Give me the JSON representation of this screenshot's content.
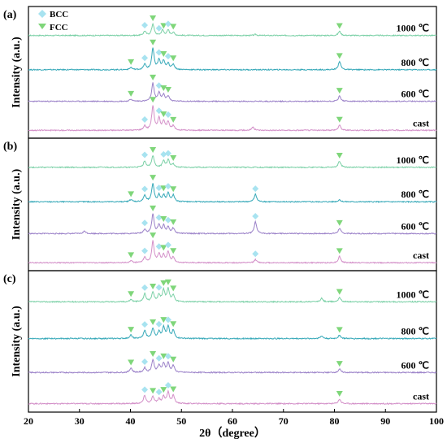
{
  "chart_data": {
    "type": "line",
    "xlabel": "2θ（degree）",
    "ylabel": "Intensity  (a.u.)",
    "xlim": [
      20,
      100
    ],
    "xticks": [
      20,
      30,
      40,
      50,
      60,
      70,
      80,
      90,
      100
    ],
    "legend": {
      "position": "top-left",
      "items": [
        {
          "label": "BCC",
          "marker": "diamond",
          "color": "#a8e3f0"
        },
        {
          "label": "FCC",
          "marker": "triangle-down",
          "color": "#7fd67a"
        }
      ]
    },
    "panels": [
      {
        "label": "(a)",
        "series": [
          {
            "name": "1000 ℃",
            "color": "#7ad0a6",
            "peaks": [
              [
                42.8,
                0.2
              ],
              [
                44.4,
                0.55
              ],
              [
                46.3,
                0.25
              ],
              [
                47.4,
                0.25
              ],
              [
                48.4,
                0.14
              ],
              [
                64.5,
                0.05
              ],
              [
                81.0,
                0.2
              ]
            ],
            "markers": [
              {
                "x": 42.8,
                "phase": "BCC"
              },
              {
                "x": 44.4,
                "phase": "FCC"
              },
              {
                "x": 45.6,
                "phase": "BCC"
              },
              {
                "x": 46.5,
                "phase": "FCC"
              },
              {
                "x": 47.4,
                "phase": "BCC"
              },
              {
                "x": 48.4,
                "phase": "FCC"
              },
              {
                "x": 81.0,
                "phase": "FCC"
              }
            ]
          },
          {
            "name": "800 ℃",
            "color": "#35a8b8",
            "peaks": [
              [
                40.1,
                0.1
              ],
              [
                42.8,
                0.25
              ],
              [
                44.4,
                1.0
              ],
              [
                45.6,
                0.45
              ],
              [
                46.5,
                0.4
              ],
              [
                47.4,
                0.3
              ],
              [
                48.4,
                0.25
              ],
              [
                81.0,
                0.4
              ]
            ],
            "markers": [
              {
                "x": 40.1,
                "phase": "FCC"
              },
              {
                "x": 42.8,
                "phase": "BCC"
              },
              {
                "x": 44.4,
                "phase": "FCC"
              },
              {
                "x": 45.6,
                "phase": "BCC"
              },
              {
                "x": 46.5,
                "phase": "FCC"
              },
              {
                "x": 47.4,
                "phase": "BCC"
              },
              {
                "x": 48.4,
                "phase": "FCC"
              },
              {
                "x": 81.0,
                "phase": "FCC"
              }
            ]
          },
          {
            "name": "600 ℃",
            "color": "#9a80c8",
            "peaks": [
              [
                40.1,
                0.1
              ],
              [
                44.4,
                0.85
              ],
              [
                45.6,
                0.4
              ],
              [
                46.5,
                0.3
              ],
              [
                47.4,
                0.25
              ],
              [
                81.0,
                0.25
              ]
            ],
            "markers": [
              {
                "x": 40.1,
                "phase": "FCC"
              },
              {
                "x": 44.4,
                "phase": "FCC"
              },
              {
                "x": 45.6,
                "phase": "BCC"
              },
              {
                "x": 46.5,
                "phase": "FCC"
              },
              {
                "x": 47.4,
                "phase": "FCC"
              },
              {
                "x": 81.0,
                "phase": "FCC"
              }
            ]
          },
          {
            "name": "cast",
            "color": "#d38fc8",
            "peaks": [
              [
                42.8,
                0.2
              ],
              [
                44.4,
                1.15
              ],
              [
                45.6,
                0.55
              ],
              [
                46.5,
                0.4
              ],
              [
                47.4,
                0.4
              ],
              [
                48.4,
                0.2
              ],
              [
                64.0,
                0.15
              ],
              [
                81.0,
                0.25
              ]
            ],
            "markers": [
              {
                "x": 42.8,
                "phase": "BCC"
              },
              {
                "x": 44.4,
                "phase": "FCC"
              },
              {
                "x": 45.6,
                "phase": "BCC"
              },
              {
                "x": 46.5,
                "phase": "FCC"
              },
              {
                "x": 47.4,
                "phase": "BCC"
              },
              {
                "x": 48.4,
                "phase": "FCC"
              },
              {
                "x": 81.0,
                "phase": "FCC"
              }
            ]
          }
        ]
      },
      {
        "label": "(b)",
        "series": [
          {
            "name": "1000 ℃",
            "color": "#7ad0a6",
            "peaks": [
              [
                42.8,
                0.3
              ],
              [
                44.4,
                0.55
              ],
              [
                46.5,
                0.3
              ],
              [
                47.4,
                0.35
              ],
              [
                48.4,
                0.15
              ],
              [
                81.0,
                0.3
              ]
            ],
            "markers": [
              {
                "x": 42.8,
                "phase": "BCC"
              },
              {
                "x": 44.4,
                "phase": "FCC"
              },
              {
                "x": 46.5,
                "phase": "BCC"
              },
              {
                "x": 47.4,
                "phase": "BCC"
              },
              {
                "x": 48.4,
                "phase": "FCC"
              },
              {
                "x": 81.0,
                "phase": "FCC"
              }
            ]
          },
          {
            "name": "800 ℃",
            "color": "#35a8b8",
            "peaks": [
              [
                40.1,
                0.1
              ],
              [
                42.8,
                0.3
              ],
              [
                44.4,
                0.85
              ],
              [
                45.6,
                0.3
              ],
              [
                46.5,
                0.3
              ],
              [
                47.4,
                0.4
              ],
              [
                48.4,
                0.3
              ],
              [
                64.5,
                0.35
              ],
              [
                81.0,
                0.1
              ]
            ],
            "markers": [
              {
                "x": 40.1,
                "phase": "FCC"
              },
              {
                "x": 42.8,
                "phase": "BCC"
              },
              {
                "x": 44.4,
                "phase": "FCC"
              },
              {
                "x": 45.6,
                "phase": "BCC"
              },
              {
                "x": 46.5,
                "phase": "FCC"
              },
              {
                "x": 47.4,
                "phase": "BCC"
              },
              {
                "x": 48.4,
                "phase": "FCC"
              },
              {
                "x": 64.5,
                "phase": "BCC"
              }
            ]
          },
          {
            "name": "600 ℃",
            "color": "#9a80c8",
            "peaks": [
              [
                31.0,
                0.12
              ],
              [
                42.8,
                0.2
              ],
              [
                44.4,
                0.9
              ],
              [
                45.6,
                0.4
              ],
              [
                46.5,
                0.35
              ],
              [
                47.4,
                0.3
              ],
              [
                48.4,
                0.25
              ],
              [
                64.5,
                0.55
              ],
              [
                81.0,
                0.25
              ]
            ],
            "markers": [
              {
                "x": 42.8,
                "phase": "BCC"
              },
              {
                "x": 44.4,
                "phase": "FCC"
              },
              {
                "x": 45.6,
                "phase": "BCC"
              },
              {
                "x": 46.5,
                "phase": "FCC"
              },
              {
                "x": 47.4,
                "phase": "BCC"
              },
              {
                "x": 48.4,
                "phase": "FCC"
              },
              {
                "x": 64.5,
                "phase": "BCC"
              },
              {
                "x": 81.0,
                "phase": "FCC"
              }
            ]
          },
          {
            "name": "cast",
            "color": "#d38fc8",
            "peaks": [
              [
                40.1,
                0.1
              ],
              [
                42.8,
                0.25
              ],
              [
                44.4,
                1.0
              ],
              [
                45.6,
                0.4
              ],
              [
                46.5,
                0.35
              ],
              [
                47.4,
                0.5
              ],
              [
                48.4,
                0.25
              ],
              [
                64.5,
                0.15
              ],
              [
                81.0,
                0.3
              ]
            ],
            "markers": [
              {
                "x": 40.1,
                "phase": "FCC"
              },
              {
                "x": 42.8,
                "phase": "BCC"
              },
              {
                "x": 44.4,
                "phase": "FCC"
              },
              {
                "x": 45.6,
                "phase": "BCC"
              },
              {
                "x": 46.5,
                "phase": "FCC"
              },
              {
                "x": 47.4,
                "phase": "BCC"
              },
              {
                "x": 48.4,
                "phase": "FCC"
              },
              {
                "x": 64.5,
                "phase": "BCC"
              },
              {
                "x": 81.0,
                "phase": "FCC"
              }
            ]
          }
        ]
      },
      {
        "label": "(c)",
        "series": [
          {
            "name": "1000 ℃",
            "color": "#7ad0a6",
            "peaks": [
              [
                40.1,
                0.1
              ],
              [
                42.8,
                0.35
              ],
              [
                44.4,
                0.4
              ],
              [
                45.6,
                0.3
              ],
              [
                46.5,
                0.5
              ],
              [
                47.4,
                0.55
              ],
              [
                48.4,
                0.3
              ],
              [
                77.5,
                0.15
              ],
              [
                81.0,
                0.2
              ]
            ],
            "markers": [
              {
                "x": 40.1,
                "phase": "FCC"
              },
              {
                "x": 42.8,
                "phase": "BCC"
              },
              {
                "x": 44.4,
                "phase": "FCC"
              },
              {
                "x": 45.6,
                "phase": "BCC"
              },
              {
                "x": 46.5,
                "phase": "FCC"
              },
              {
                "x": 47.4,
                "phase": "FCC"
              },
              {
                "x": 48.4,
                "phase": "FCC"
              },
              {
                "x": 81.0,
                "phase": "FCC"
              }
            ]
          },
          {
            "name": "800 ℃",
            "color": "#35a8b8",
            "peaks": [
              [
                40.1,
                0.15
              ],
              [
                42.8,
                0.35
              ],
              [
                44.4,
                0.45
              ],
              [
                45.6,
                0.3
              ],
              [
                46.5,
                0.5
              ],
              [
                47.4,
                0.5
              ],
              [
                48.4,
                0.35
              ],
              [
                77.5,
                0.12
              ],
              [
                81.0,
                0.15
              ]
            ],
            "markers": [
              {
                "x": 40.1,
                "phase": "FCC"
              },
              {
                "x": 42.8,
                "phase": "BCC"
              },
              {
                "x": 44.4,
                "phase": "FCC"
              },
              {
                "x": 45.6,
                "phase": "BCC"
              },
              {
                "x": 46.5,
                "phase": "FCC"
              },
              {
                "x": 47.4,
                "phase": "BCC"
              },
              {
                "x": 48.4,
                "phase": "FCC"
              },
              {
                "x": 81.0,
                "phase": "FCC"
              }
            ]
          },
          {
            "name": "600 ℃",
            "color": "#9a80c8",
            "peaks": [
              [
                40.1,
                0.2
              ],
              [
                42.8,
                0.2
              ],
              [
                44.4,
                0.55
              ],
              [
                45.6,
                0.3
              ],
              [
                46.5,
                0.4
              ],
              [
                47.4,
                0.4
              ],
              [
                48.4,
                0.3
              ],
              [
                81.0,
                0.15
              ]
            ],
            "markers": [
              {
                "x": 40.1,
                "phase": "FCC"
              },
              {
                "x": 42.8,
                "phase": "BCC"
              },
              {
                "x": 44.4,
                "phase": "FCC"
              },
              {
                "x": 45.6,
                "phase": "BCC"
              },
              {
                "x": 46.5,
                "phase": "FCC"
              },
              {
                "x": 47.4,
                "phase": "BCC"
              },
              {
                "x": 48.4,
                "phase": "FCC"
              },
              {
                "x": 81.0,
                "phase": "FCC"
              }
            ]
          },
          {
            "name": "cast",
            "color": "#d38fc8",
            "peaks": [
              [
                42.8,
                0.35
              ],
              [
                44.4,
                0.3
              ],
              [
                45.6,
                0.2
              ],
              [
                46.5,
                0.3
              ],
              [
                47.4,
                0.5
              ],
              [
                48.4,
                0.35
              ],
              [
                81.0,
                0.2
              ]
            ],
            "markers": [
              {
                "x": 42.8,
                "phase": "BCC"
              },
              {
                "x": 44.4,
                "phase": "FCC"
              },
              {
                "x": 45.6,
                "phase": "BCC"
              },
              {
                "x": 46.5,
                "phase": "FCC"
              },
              {
                "x": 47.4,
                "phase": "BCC"
              },
              {
                "x": 48.4,
                "phase": "FCC"
              },
              {
                "x": 81.0,
                "phase": "FCC"
              }
            ]
          }
        ]
      }
    ]
  }
}
